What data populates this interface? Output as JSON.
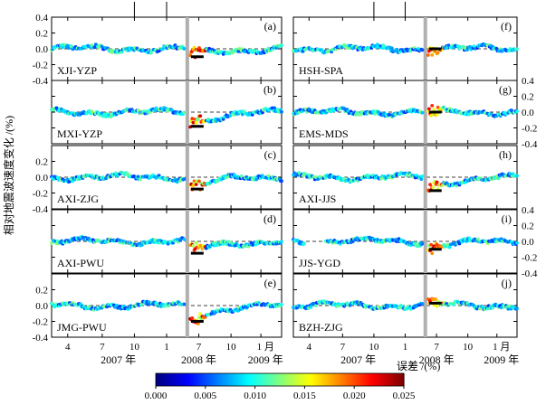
{
  "chart_data": {
    "type": "scatter",
    "description_axis": {
      "ylabel": "相对地震波速度变化 /(%)",
      "y_ticks": [
        "0.4",
        "0.2",
        "0.0",
        "-0.2",
        "-0.4"
      ],
      "ylim": [
        -0.4,
        0.4
      ],
      "x_month_ticks": [
        "4",
        "7",
        "10",
        "1",
        "4",
        "7",
        "10",
        "1 月"
      ],
      "x_year_labels": [
        "2007 年",
        "2008 年",
        "2009 年"
      ],
      "x_range_months": [
        "2007-02",
        "2009-05"
      ],
      "event_marker": "2008-05-12"
    },
    "colorbar": {
      "label": "误差 /(%)",
      "range": [
        0.0,
        0.025
      ],
      "tick_labels": [
        "0.000",
        "0.005",
        "0.010",
        "0.015",
        "0.020",
        "0.025"
      ],
      "colors": [
        "#000080",
        "#0000ff",
        "#0080ff",
        "#00ffff",
        "#80ff80",
        "#ffff00",
        "#ff8000",
        "#ff0000",
        "#800000"
      ]
    },
    "panels": [
      {
        "id": "(a)",
        "station_pair": "XJI-YZP",
        "column": "left",
        "post_offset": -0.1
      },
      {
        "id": "(b)",
        "station_pair": "MXI-YZP",
        "column": "left",
        "post_offset": -0.18
      },
      {
        "id": "(c)",
        "station_pair": "AXI-ZJG",
        "column": "left",
        "post_offset": -0.15
      },
      {
        "id": "(d)",
        "station_pair": "AXI-PWU",
        "column": "left",
        "post_offset": -0.15
      },
      {
        "id": "(e)",
        "station_pair": "JMG-PWU",
        "column": "left",
        "post_offset": -0.2
      },
      {
        "id": "(f)",
        "station_pair": "HSH-SPA",
        "column": "right",
        "post_offset": 0.0
      },
      {
        "id": "(g)",
        "station_pair": "EMS-MDS",
        "column": "right",
        "post_offset": 0.0
      },
      {
        "id": "(h)",
        "station_pair": "AXI-JJS",
        "column": "right",
        "post_offset": -0.17
      },
      {
        "id": "(i)",
        "station_pair": "JJS-YGD",
        "column": "right",
        "post_offset": -0.1
      },
      {
        "id": "(j)",
        "station_pair": "BZH-ZJG",
        "column": "right",
        "post_offset": 0.03
      }
    ]
  }
}
